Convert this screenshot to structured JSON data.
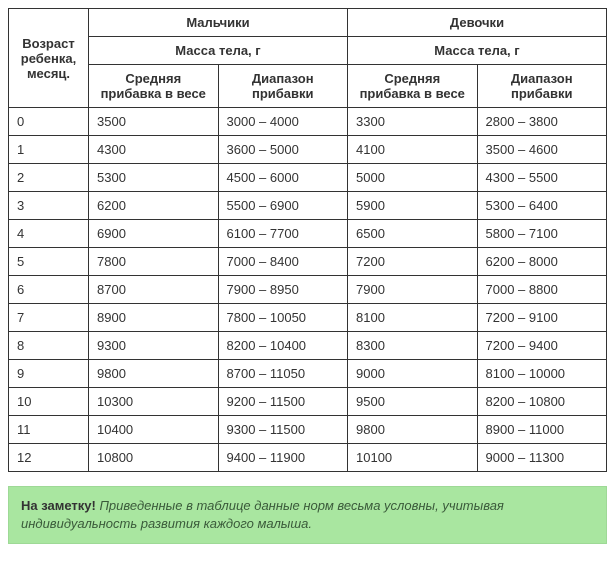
{
  "table": {
    "header": {
      "age": "Возраст ребенка, месяц.",
      "boys": "Мальчики",
      "girls": "Девочки",
      "mass": "Масса тела, г",
      "avg_gain": "Средняя прибавка в весе",
      "range_gain": "Диапазон прибавки"
    },
    "rows": [
      {
        "age": "0",
        "b_avg": "3500",
        "b_rng": "3000 – 4000",
        "g_avg": "3300",
        "g_rng": "2800 – 3800"
      },
      {
        "age": "1",
        "b_avg": "4300",
        "b_rng": "3600 – 5000",
        "g_avg": "4100",
        "g_rng": "3500 – 4600"
      },
      {
        "age": "2",
        "b_avg": "5300",
        "b_rng": "4500 – 6000",
        "g_avg": "5000",
        "g_rng": "4300 – 5500"
      },
      {
        "age": "3",
        "b_avg": "6200",
        "b_rng": "5500 – 6900",
        "g_avg": "5900",
        "g_rng": "5300 – 6400"
      },
      {
        "age": "4",
        "b_avg": "6900",
        "b_rng": "6100 – 7700",
        "g_avg": "6500",
        "g_rng": "5800 – 7100"
      },
      {
        "age": "5",
        "b_avg": "7800",
        "b_rng": "7000 – 8400",
        "g_avg": "7200",
        "g_rng": "6200 – 8000"
      },
      {
        "age": "6",
        "b_avg": "8700",
        "b_rng": "7900 – 8950",
        "g_avg": "7900",
        "g_rng": "7000 – 8800"
      },
      {
        "age": "7",
        "b_avg": "8900",
        "b_rng": "7800 – 10050",
        "g_avg": "8100",
        "g_rng": "7200 – 9100"
      },
      {
        "age": "8",
        "b_avg": "9300",
        "b_rng": "8200 – 10400",
        "g_avg": "8300",
        "g_rng": "7200 – 9400"
      },
      {
        "age": "9",
        "b_avg": "9800",
        "b_rng": "8700 – 11050",
        "g_avg": "9000",
        "g_rng": "8100 – 10000"
      },
      {
        "age": "10",
        "b_avg": "10300",
        "b_rng": "9200 – 11500",
        "g_avg": "9500",
        "g_rng": "8200 – 10800"
      },
      {
        "age": "11",
        "b_avg": "10400",
        "b_rng": "9300 – 11500",
        "g_avg": "9800",
        "g_rng": "8900 – 11000"
      },
      {
        "age": "12",
        "b_avg": "10800",
        "b_rng": "9400 – 11900",
        "g_avg": "10100",
        "g_rng": "9000 – 11300"
      }
    ]
  },
  "note": {
    "label": "На заметку!",
    "text": "Приведенные в таблице данные норм весьма условны, учитывая индивидуальность развития каждого малыша."
  },
  "style": {
    "note_bg": "#a9e6a0",
    "border_color": "#333333"
  }
}
